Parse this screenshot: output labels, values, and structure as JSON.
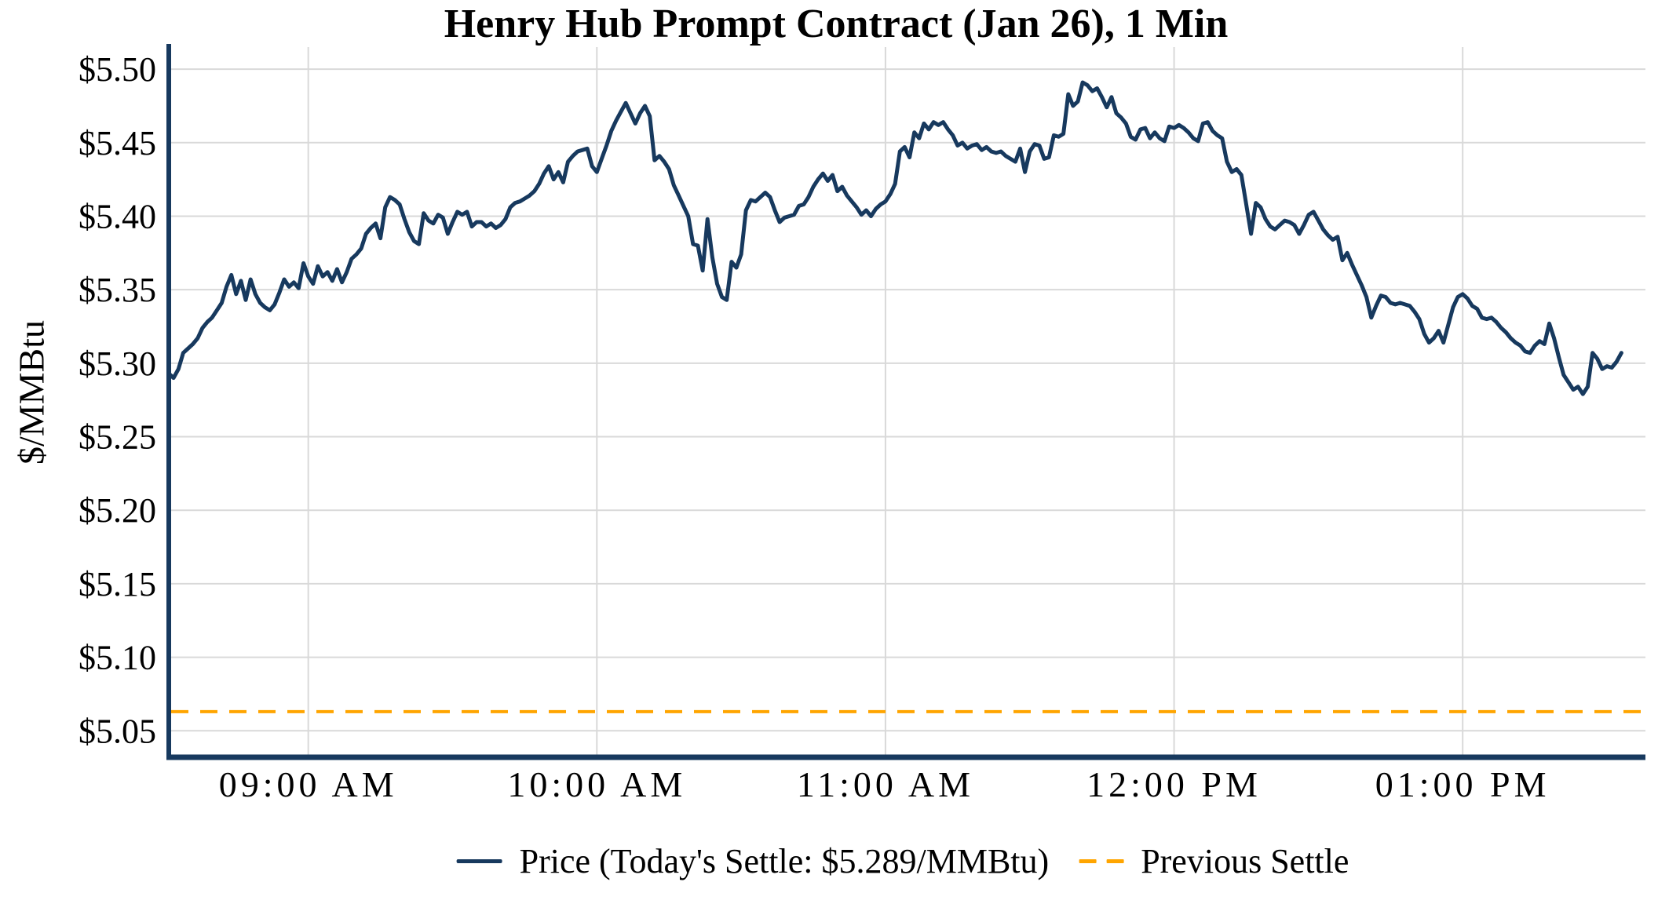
{
  "title": "Henry Hub Prompt Contract (Jan 26), 1 Min",
  "y_axis": {
    "label": "$/MMBtu",
    "ticks": [
      {
        "value": 5.05,
        "label": "$5.05"
      },
      {
        "value": 5.1,
        "label": "$5.10"
      },
      {
        "value": 5.15,
        "label": "$5.15"
      },
      {
        "value": 5.2,
        "label": "$5.20"
      },
      {
        "value": 5.25,
        "label": "$5.25"
      },
      {
        "value": 5.3,
        "label": "$5.30"
      },
      {
        "value": 5.35,
        "label": "$5.35"
      },
      {
        "value": 5.4,
        "label": "$5.40"
      },
      {
        "value": 5.45,
        "label": "$5.45"
      },
      {
        "value": 5.5,
        "label": "$5.50"
      }
    ]
  },
  "x_axis": {
    "ticks": [
      {
        "minutes": 540,
        "label": "09:00 AM"
      },
      {
        "minutes": 600,
        "label": "10:00 AM"
      },
      {
        "minutes": 660,
        "label": "11:00 AM"
      },
      {
        "minutes": 720,
        "label": "12:00 PM"
      },
      {
        "minutes": 780,
        "label": "01:00 PM"
      }
    ]
  },
  "legend": {
    "price_label": "Price (Today's Settle: $5.289/MMBtu)",
    "previous_settle_label": "Previous Settle"
  },
  "colors": {
    "price_line": "#17395e",
    "previous_settle_line": "#FFA500",
    "grid": "#d9d9d9",
    "axis": "#17395e",
    "text": "#000000"
  },
  "chart_data": {
    "type": "line",
    "title": "Henry Hub Prompt Contract (Jan 26), 1 Min",
    "xlabel": "",
    "ylabel": "$/MMBtu",
    "grid": true,
    "legend_position": "bottom",
    "today_settle": 5.289,
    "previous_settle": 5.063,
    "x_start_time": "08:31",
    "x_step_minutes": 1,
    "x_end_time": "13:33",
    "xlim_minutes": [
      511,
      818
    ],
    "ylim": [
      5.032,
      5.515
    ],
    "series": [
      {
        "name": "Price (Today's Settle: $5.289/MMBtu)",
        "type": "line",
        "style": "solid",
        "color": "#17395e",
        "values": [
          5.293,
          5.29,
          5.296,
          5.307,
          5.31,
          5.313,
          5.317,
          5.324,
          5.328,
          5.331,
          5.336,
          5.341,
          5.352,
          5.36,
          5.347,
          5.356,
          5.343,
          5.357,
          5.347,
          5.341,
          5.338,
          5.336,
          5.34,
          5.348,
          5.357,
          5.352,
          5.355,
          5.351,
          5.368,
          5.359,
          5.354,
          5.366,
          5.359,
          5.362,
          5.356,
          5.364,
          5.355,
          5.362,
          5.371,
          5.374,
          5.378,
          5.388,
          5.392,
          5.395,
          5.385,
          5.406,
          5.413,
          5.411,
          5.408,
          5.398,
          5.389,
          5.383,
          5.381,
          5.402,
          5.397,
          5.395,
          5.401,
          5.399,
          5.388,
          5.396,
          5.403,
          5.401,
          5.403,
          5.393,
          5.396,
          5.396,
          5.393,
          5.395,
          5.392,
          5.394,
          5.398,
          5.406,
          5.409,
          5.41,
          5.412,
          5.414,
          5.417,
          5.422,
          5.429,
          5.434,
          5.425,
          5.43,
          5.423,
          5.437,
          5.441,
          5.444,
          5.445,
          5.446,
          5.434,
          5.43,
          5.439,
          5.448,
          5.458,
          5.465,
          5.471,
          5.477,
          5.47,
          5.463,
          5.47,
          5.475,
          5.468,
          5.438,
          5.441,
          5.437,
          5.432,
          5.421,
          5.414,
          5.407,
          5.4,
          5.381,
          5.38,
          5.363,
          5.398,
          5.372,
          5.354,
          5.345,
          5.343,
          5.369,
          5.365,
          5.374,
          5.404,
          5.411,
          5.41,
          5.413,
          5.416,
          5.413,
          5.404,
          5.396,
          5.399,
          5.4,
          5.401,
          5.407,
          5.408,
          5.413,
          5.42,
          5.425,
          5.429,
          5.424,
          5.428,
          5.417,
          5.42,
          5.414,
          5.41,
          5.406,
          5.401,
          5.404,
          5.4,
          5.405,
          5.408,
          5.41,
          5.415,
          5.422,
          5.444,
          5.447,
          5.44,
          5.457,
          5.453,
          5.463,
          5.459,
          5.464,
          5.462,
          5.464,
          5.459,
          5.455,
          5.448,
          5.45,
          5.446,
          5.448,
          5.449,
          5.445,
          5.447,
          5.444,
          5.443,
          5.444,
          5.441,
          5.439,
          5.437,
          5.446,
          5.43,
          5.444,
          5.449,
          5.448,
          5.439,
          5.44,
          5.455,
          5.454,
          5.456,
          5.483,
          5.475,
          5.478,
          5.491,
          5.489,
          5.485,
          5.487,
          5.481,
          5.474,
          5.481,
          5.47,
          5.467,
          5.463,
          5.454,
          5.452,
          5.459,
          5.46,
          5.453,
          5.457,
          5.453,
          5.451,
          5.461,
          5.46,
          5.462,
          5.46,
          5.457,
          5.453,
          5.451,
          5.463,
          5.464,
          5.458,
          5.455,
          5.453,
          5.437,
          5.43,
          5.432,
          5.428,
          5.408,
          5.388,
          5.409,
          5.406,
          5.398,
          5.393,
          5.391,
          5.394,
          5.397,
          5.396,
          5.394,
          5.388,
          5.394,
          5.401,
          5.403,
          5.397,
          5.391,
          5.387,
          5.384,
          5.386,
          5.37,
          5.375,
          5.367,
          5.36,
          5.353,
          5.345,
          5.331,
          5.339,
          5.346,
          5.345,
          5.341,
          5.34,
          5.341,
          5.34,
          5.339,
          5.335,
          5.33,
          5.32,
          5.314,
          5.317,
          5.322,
          5.314,
          5.326,
          5.338,
          5.345,
          5.347,
          5.344,
          5.339,
          5.337,
          5.331,
          5.33,
          5.331,
          5.328,
          5.324,
          5.321,
          5.317,
          5.314,
          5.312,
          5.308,
          5.307,
          5.312,
          5.315,
          5.313,
          5.327,
          5.317,
          5.304,
          5.292,
          5.287,
          5.282,
          5.284,
          5.279,
          5.284,
          5.307,
          5.303,
          5.296,
          5.298,
          5.297,
          5.301,
          5.307
        ]
      },
      {
        "name": "Previous Settle",
        "type": "hline",
        "style": "dashed",
        "color": "#FFA500",
        "value": 5.063
      }
    ]
  }
}
